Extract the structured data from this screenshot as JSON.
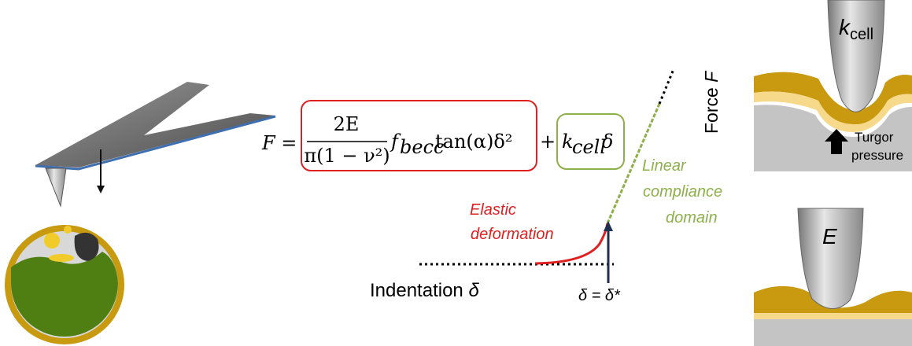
{
  "formula": {
    "lhs": "F =",
    "numerator": "2E",
    "denominator": "π(1 − ν²)",
    "f": "f",
    "f_sub": "becc",
    "rest": "tan(α)δ²",
    "plus": "+",
    "k": "k",
    "k_sub": "cell",
    "delta": "δ"
  },
  "graph": {
    "y_label": {
      "text": "Force",
      "symbol": "F"
    },
    "x_label": {
      "text": "Indentation",
      "symbol": "δ"
    },
    "threshold": "δ = δ*",
    "elastic": [
      "Elastic",
      "deformation"
    ],
    "linear": [
      "Linear",
      "compliance",
      "domain"
    ]
  },
  "panels": {
    "top": {
      "k": "k",
      "k_sub": "cell",
      "turgor": [
        "Turgor",
        "pressure"
      ]
    },
    "bottom": {
      "label": "E"
    }
  }
}
